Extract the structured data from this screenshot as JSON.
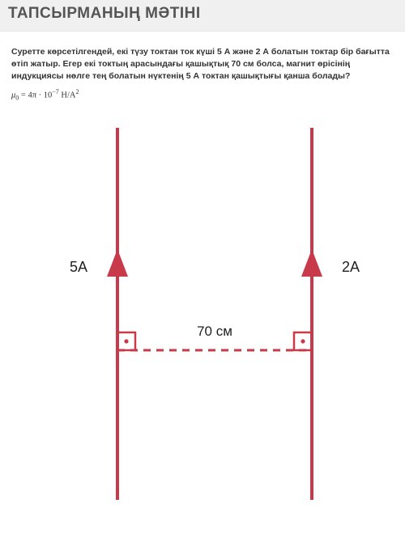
{
  "header": {
    "title": "ТАПСЫРМАНЫҢ МӘТІНІ"
  },
  "problem": {
    "text": "Суретте көрсетілгендей, екі түзу токтан ток күші 5 А және 2 А болатын токтар бір бағытта өтіп жатыр. Егер екі токтың арасындағы қашықтық 70 см болса, магнит өрісінің индукциясы нөлге тең болатын нүктенің 5 А токтан қашықтығы қанша болады?",
    "formula_mu": "μ",
    "formula_sub": "0",
    "formula_eq": " = 4π · 10",
    "formula_exp": "−7",
    "formula_unit": " Н/А",
    "formula_unit_exp": "2"
  },
  "diagram": {
    "left_label": "5A",
    "right_label": "2A",
    "distance_label": "70 см",
    "wire_color": "#c83a4a",
    "wire_width": 4,
    "dash_color": "#c83a4a",
    "label_color": "#222222",
    "label_fontsize": 18,
    "dist_fontsize": 17,
    "bg": "#ffffff"
  }
}
